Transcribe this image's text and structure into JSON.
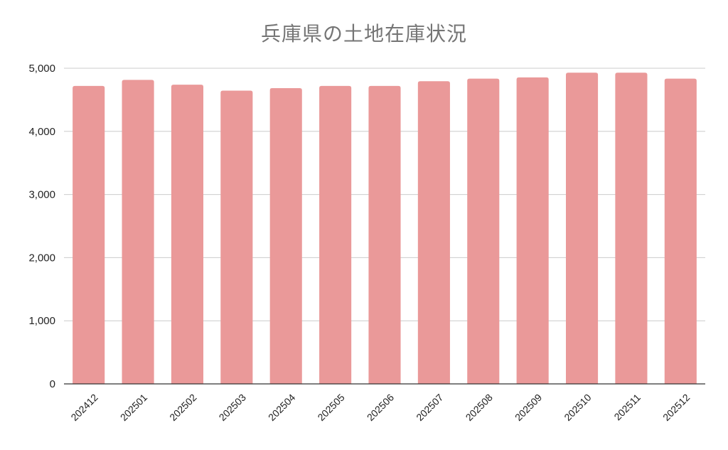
{
  "chart_data": {
    "type": "bar",
    "title": "兵庫県の土地在庫状況",
    "xlabel": "",
    "ylabel": "",
    "categories": [
      "202412",
      "202501",
      "202502",
      "202503",
      "202504",
      "202505",
      "202506",
      "202507",
      "202508",
      "202509",
      "202510",
      "202511",
      "202512"
    ],
    "values": [
      4720,
      4815,
      4740,
      4645,
      4685,
      4720,
      4720,
      4795,
      4835,
      4855,
      4930,
      4930,
      4835
    ],
    "ylim": [
      0,
      5000
    ],
    "yticks": [
      0,
      1000,
      2000,
      3000,
      4000,
      5000
    ],
    "ytick_labels": [
      "0",
      "1,000",
      "2,000",
      "3,000",
      "4,000",
      "5,000"
    ],
    "grid": true,
    "legend": "none",
    "colors": {
      "bar": "#ea9999",
      "grid": "#cccccc",
      "axis": "#333333",
      "title": "#757575"
    }
  }
}
